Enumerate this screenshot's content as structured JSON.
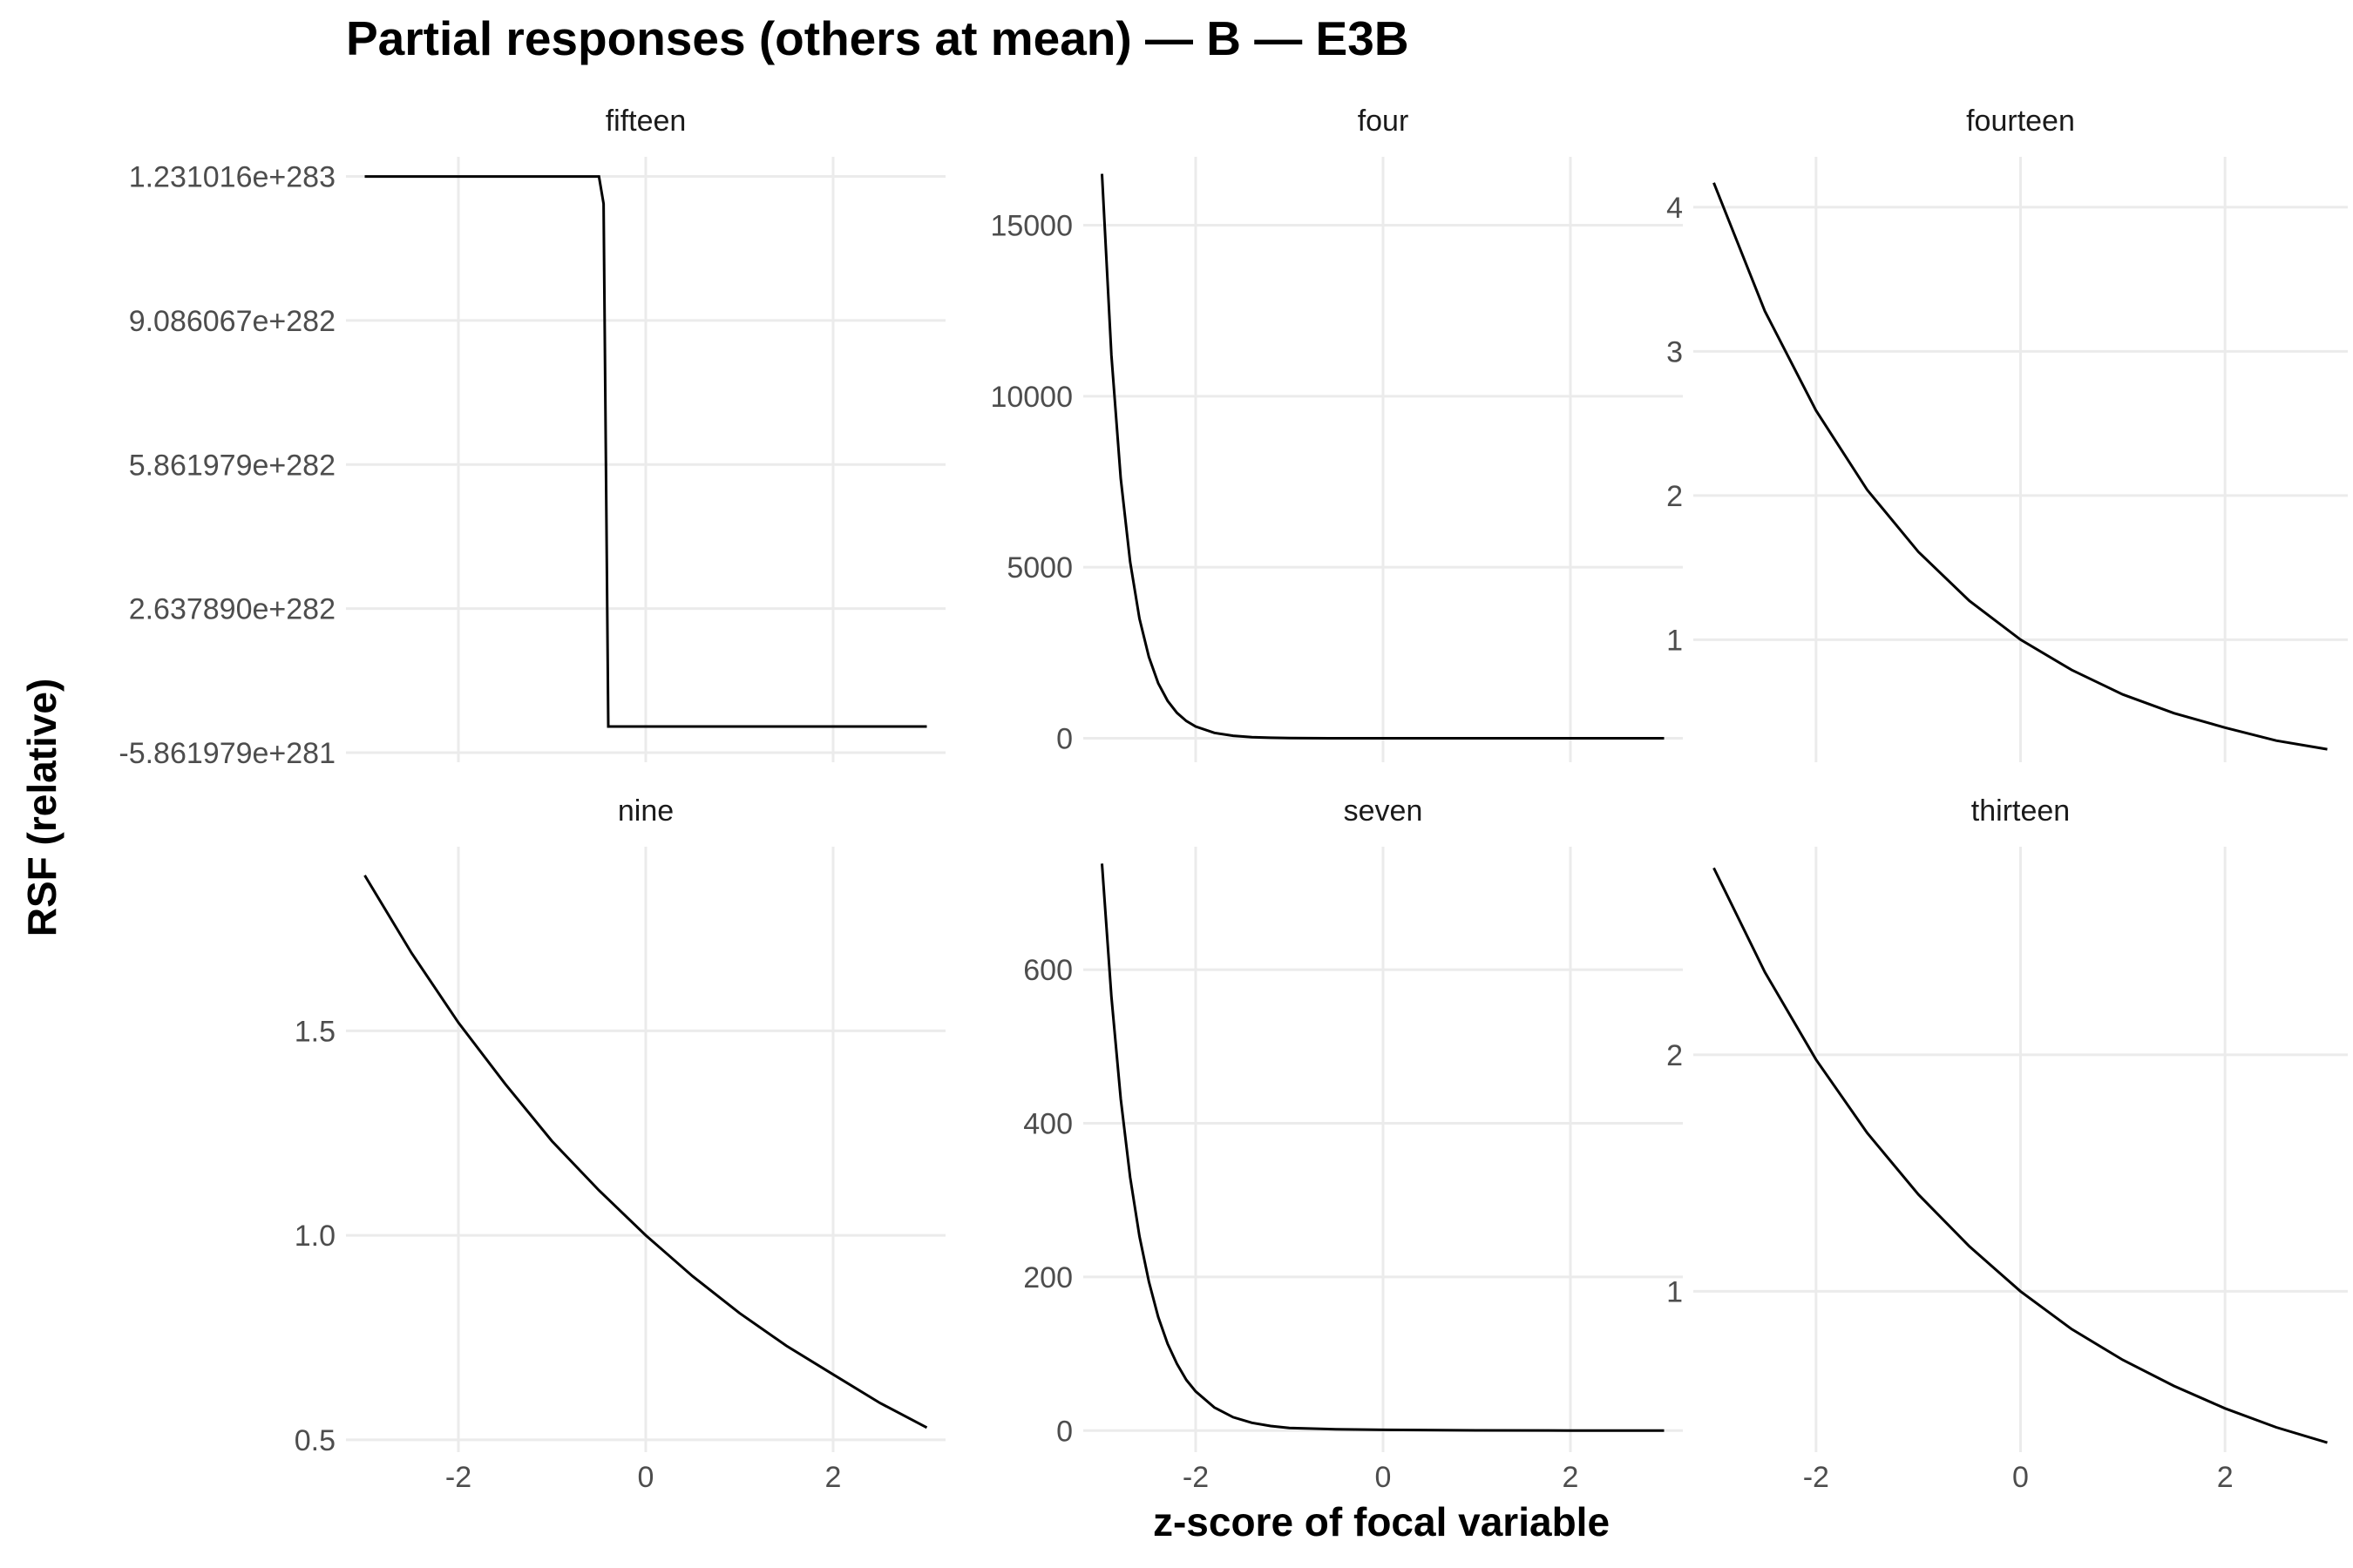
{
  "chart_data": {
    "type": "line",
    "title": "Partial responses (others at mean) — B — E3B",
    "xlabel": "z-score of focal variable",
    "ylabel": "RSF (relative)",
    "grid": true,
    "legend": "none",
    "line_color": "#000000",
    "grid_color": "#ebebeb",
    "x_shared": {
      "range": [
        -3.2,
        3.2
      ],
      "ticks": [
        -2,
        0,
        2
      ],
      "tick_labels": [
        "-2",
        "0",
        "2"
      ]
    },
    "panels": [
      {
        "name": "fifteen",
        "ylim": [
          -8e+281,
          1.275e+283
        ],
        "y_ticks": [
          -5.861979e+281,
          2.63789e+282,
          5.861979e+282,
          9.086067e+282,
          1.231016e+283
        ],
        "y_tick_labels": [
          "-5.861979e+281",
          "2.637890e+282",
          "5.861979e+282",
          "9.086067e+282",
          "1.231016e+283"
        ],
        "x": [
          -3.0,
          -0.5,
          -0.45,
          -0.4,
          3.0
        ],
        "y": [
          1.231016e+283,
          1.231016e+283,
          1.17e+283,
          0,
          0
        ]
      },
      {
        "name": "four",
        "ylim": [
          -700,
          17000
        ],
        "y_ticks": [
          0,
          5000,
          10000,
          15000
        ],
        "y_tick_labels": [
          "0",
          "5000",
          "10000",
          "15000"
        ],
        "x": [
          -3.0,
          -2.9,
          -2.8,
          -2.7,
          -2.6,
          -2.5,
          -2.4,
          -2.3,
          -2.2,
          -2.1,
          -2.0,
          -1.8,
          -1.6,
          -1.4,
          -1.2,
          -1.0,
          -0.5,
          0.0,
          1.0,
          2.0,
          3.0
        ],
        "y": [
          16500,
          11200,
          7600,
          5160,
          3500,
          2380,
          1610,
          1095,
          743,
          505,
          343,
          158,
          73,
          34,
          15.6,
          7.2,
          1.56,
          0.34,
          0.016,
          0.0007,
          3e-05
        ]
      },
      {
        "name": "fourteen",
        "ylim": [
          0.15,
          4.35
        ],
        "y_ticks": [
          1,
          2,
          3,
          4
        ],
        "y_tick_labels": [
          "1",
          "2",
          "3",
          "4"
        ],
        "x": [
          -3.0,
          -2.5,
          -2.0,
          -1.5,
          -1.0,
          -0.5,
          0.0,
          0.5,
          1.0,
          1.5,
          2.0,
          2.5,
          3.0
        ],
        "y": [
          4.17,
          3.28,
          2.59,
          2.04,
          1.61,
          1.27,
          1.0,
          0.79,
          0.62,
          0.49,
          0.39,
          0.3,
          0.24
        ]
      },
      {
        "name": "nine",
        "ylim": [
          0.47,
          1.95
        ],
        "y_ticks": [
          0.5,
          1.0,
          1.5
        ],
        "y_tick_labels": [
          "0.5",
          "1.0",
          "1.5"
        ],
        "x": [
          -3.0,
          -2.5,
          -2.0,
          -1.5,
          -1.0,
          -0.5,
          0.0,
          0.5,
          1.0,
          1.5,
          2.0,
          2.5,
          3.0
        ],
        "y": [
          1.88,
          1.69,
          1.52,
          1.37,
          1.23,
          1.11,
          1.0,
          0.9,
          0.81,
          0.73,
          0.66,
          0.59,
          0.53
        ]
      },
      {
        "name": "seven",
        "ylim": [
          -28,
          760
        ],
        "y_ticks": [
          0,
          200,
          400,
          600
        ],
        "y_tick_labels": [
          "0",
          "200",
          "400",
          "600"
        ],
        "x": [
          -3.0,
          -2.9,
          -2.8,
          -2.7,
          -2.6,
          -2.5,
          -2.4,
          -2.3,
          -2.2,
          -2.1,
          -2.0,
          -1.8,
          -1.6,
          -1.4,
          -1.2,
          -1.0,
          -0.5,
          0.0,
          1.0,
          2.0,
          3.0
        ],
        "y": [
          738,
          565,
          432,
          330,
          253,
          194,
          148,
          113,
          87,
          66,
          51,
          30,
          17.5,
          10.2,
          6.0,
          3.5,
          1.87,
          1.0,
          0.29,
          0.08,
          0.02
        ]
      },
      {
        "name": "thirteen",
        "ylim": [
          0.32,
          2.88
        ],
        "y_ticks": [
          1,
          2
        ],
        "y_tick_labels": [
          "1",
          "2"
        ],
        "x": [
          -3.0,
          -2.5,
          -2.0,
          -1.5,
          -1.0,
          -0.5,
          0.0,
          0.5,
          1.0,
          1.5,
          2.0,
          2.5,
          3.0
        ],
        "y": [
          2.79,
          2.35,
          1.98,
          1.67,
          1.41,
          1.19,
          1.0,
          0.84,
          0.71,
          0.6,
          0.505,
          0.425,
          0.36
        ]
      }
    ]
  }
}
